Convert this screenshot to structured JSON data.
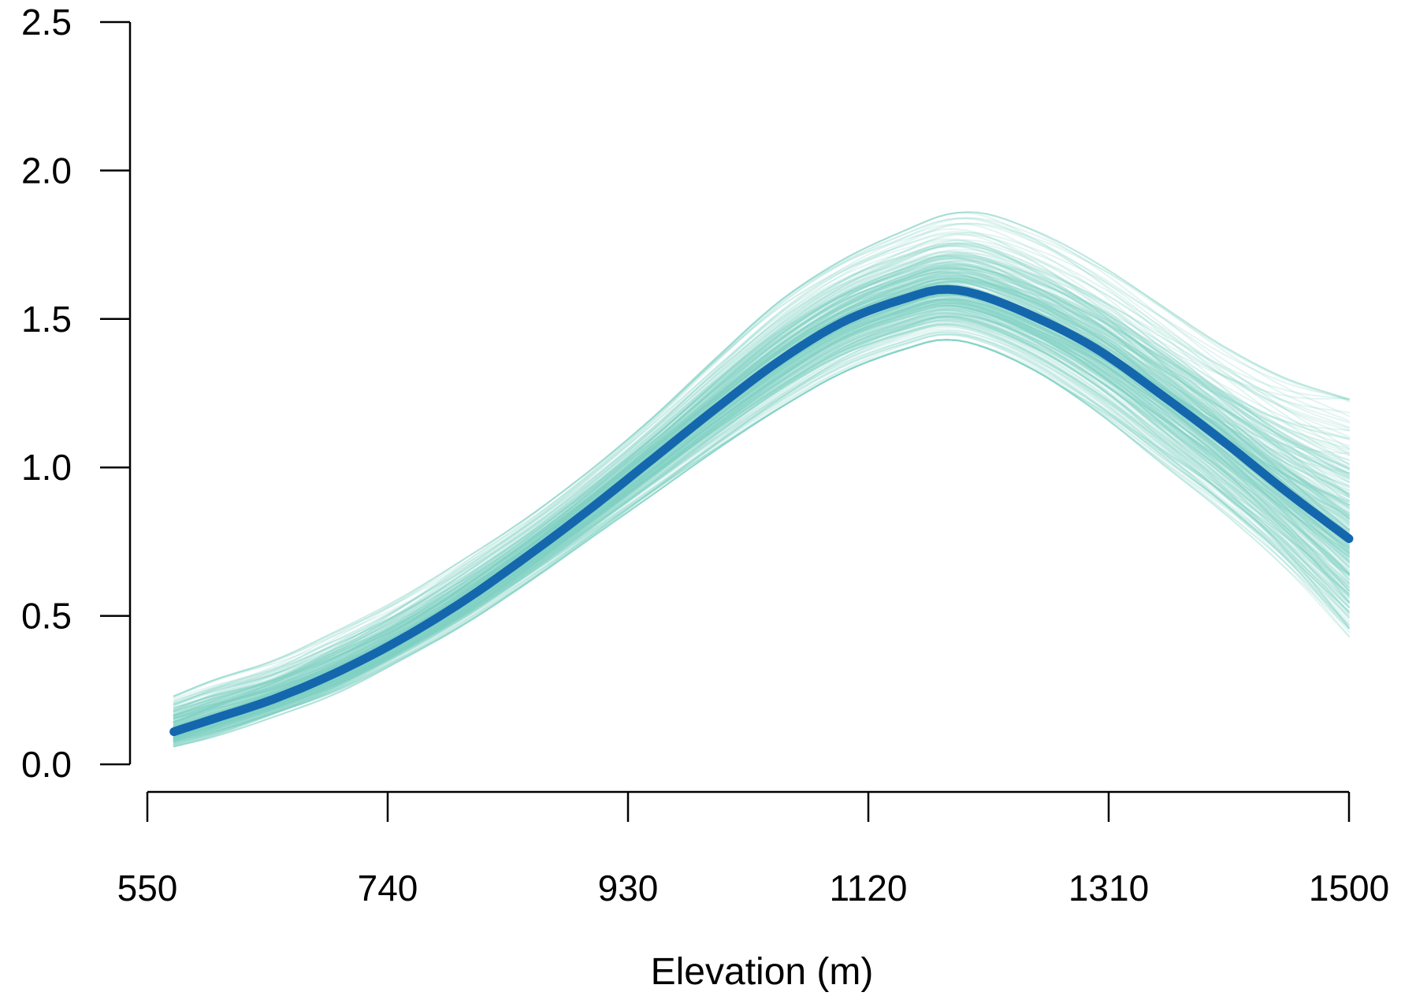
{
  "chart_data": {
    "type": "line",
    "title": "",
    "xlabel": "Elevation (m)",
    "ylabel": "",
    "xlim": [
      550,
      1500
    ],
    "ylim": [
      0,
      2.5
    ],
    "x_ticks": [
      "550",
      "740",
      "930",
      "1120",
      "1310",
      "1500"
    ],
    "y_ticks": [
      "0.0",
      "0.5",
      "1.0",
      "1.5",
      "2.0",
      "2.5"
    ],
    "grid": false,
    "legend": "none",
    "colors": {
      "mean": "#1467ad",
      "draws": "#7fd0c4"
    },
    "series": [
      {
        "role": "posterior-mean",
        "x": [
          571,
          600,
          650,
          700,
          750,
          800,
          850,
          900,
          950,
          1000,
          1050,
          1100,
          1150,
          1180,
          1200,
          1250,
          1300,
          1350,
          1400,
          1450,
          1500
        ],
        "y": [
          0.11,
          0.15,
          0.22,
          0.31,
          0.42,
          0.55,
          0.7,
          0.86,
          1.03,
          1.2,
          1.36,
          1.49,
          1.57,
          1.6,
          1.59,
          1.51,
          1.4,
          1.25,
          1.09,
          0.92,
          0.76
        ]
      }
    ],
    "posterior_draws": {
      "count": 300,
      "band_lower": [
        0.06,
        0.09,
        0.16,
        0.24,
        0.35,
        0.47,
        0.61,
        0.76,
        0.91,
        1.06,
        1.2,
        1.32,
        1.4,
        1.43,
        1.42,
        1.33,
        1.19,
        1.02,
        0.85,
        0.66,
        0.43
      ],
      "band_upper": [
        0.23,
        0.28,
        0.35,
        0.45,
        0.56,
        0.69,
        0.83,
        0.99,
        1.17,
        1.37,
        1.56,
        1.7,
        1.8,
        1.85,
        1.86,
        1.8,
        1.69,
        1.55,
        1.41,
        1.3,
        1.23
      ]
    }
  }
}
